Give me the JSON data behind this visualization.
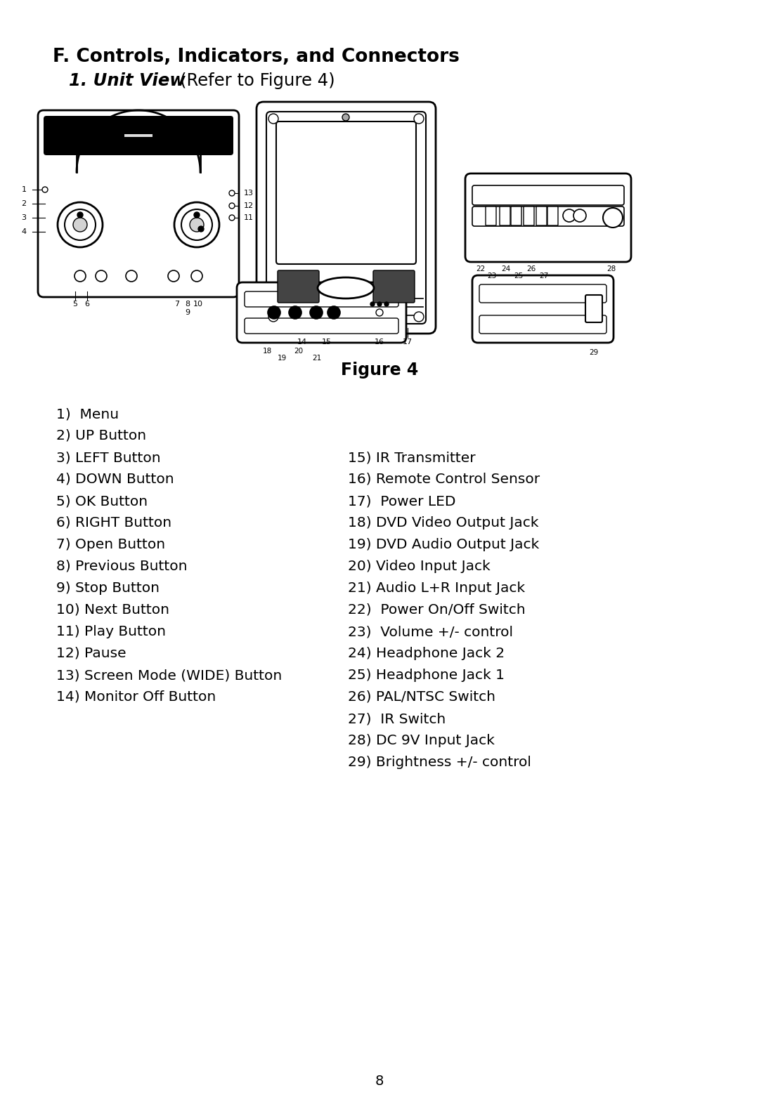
{
  "title_main": "F. Controls, Indicators, and Connectors",
  "title_sub_bold": "1. Unit View",
  "title_sub_normal": " (Refer to Figure 4)",
  "figure_label": "Figure 4",
  "page_number": "8",
  "left_items": [
    "1)  Menu",
    "2) UP Button",
    "3) LEFT Button",
    "4) DOWN Button",
    "5) OK Button",
    "6) RIGHT Button",
    "7) Open Button",
    "8) Previous Button",
    "9) Stop Button",
    "10) Next Button",
    "11) Play Button",
    "12) Pause",
    "13) Screen Mode (WIDE) Button",
    "14) Monitor Off Button"
  ],
  "right_items": [
    "15) IR Transmitter",
    "16) Remote Control Sensor",
    "17)  Power LED",
    "18) DVD Video Output Jack",
    "19) DVD Audio Output Jack",
    "20) Video Input Jack",
    "21) Audio L+R Input Jack",
    "22)  Power On/Off Switch",
    "23)  Volume +/- control",
    "24) Headphone Jack 2",
    "25) Headphone Jack 1",
    "26) PAL/NTSC Switch",
    "27)  IR Switch",
    "28) DC 9V Input Jack",
    "29) Brightness +/- control"
  ],
  "bg_color": "#ffffff",
  "text_color": "#000000",
  "fig_width": 10.8,
  "fig_height": 15.62
}
